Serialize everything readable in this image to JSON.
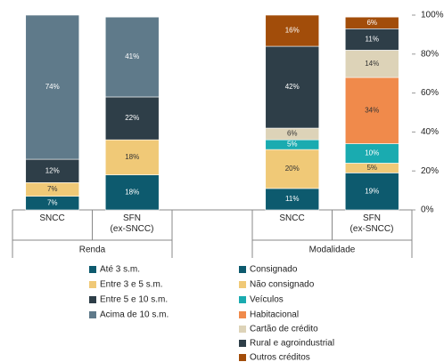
{
  "chart_data": {
    "type": "bar",
    "stacked": true,
    "ylim": [
      0,
      100
    ],
    "yticks": [
      {
        "value": 0,
        "label": "0%"
      },
      {
        "value": 20,
        "label": "20%"
      },
      {
        "value": 40,
        "label": "40%"
      },
      {
        "value": 60,
        "label": "60%"
      },
      {
        "value": 80,
        "label": "80%"
      },
      {
        "value": 100,
        "label": "100%"
      }
    ],
    "groups": [
      {
        "name": "Renda",
        "categories": [
          "SNCC",
          "SFN\n(ex-SNCC)"
        ],
        "series": [
          {
            "name": "Até 3 s.m.",
            "color": "#0d5a6e",
            "values": [
              7,
              18
            ],
            "value_labels": [
              "7%",
              "18%"
            ]
          },
          {
            "name": "Entre 3 e 5 s.m.",
            "color": "#f0c977",
            "values": [
              7,
              18
            ],
            "value_labels": [
              "7%",
              "18%"
            ]
          },
          {
            "name": "Entre 5 e 10 s.m.",
            "color": "#2e3e48",
            "values": [
              12,
              22
            ],
            "value_labels": [
              "12%",
              "22%"
            ]
          },
          {
            "name": "Acima de 10 s.m.",
            "color": "#5f7a8a",
            "values": [
              74,
              41
            ],
            "value_labels": [
              "74%",
              "41%"
            ]
          }
        ]
      },
      {
        "name": "Modalidade",
        "categories": [
          "SNCC",
          "SFN\n(ex-SNCC)"
        ],
        "series": [
          {
            "name": "Consignado",
            "color": "#0d5a6e",
            "values": [
              11,
              19
            ],
            "value_labels": [
              "11%",
              "19%"
            ]
          },
          {
            "name": "Não consignado",
            "color": "#f0c977",
            "values": [
              20,
              5
            ],
            "value_labels": [
              "20%",
              "5%"
            ]
          },
          {
            "name": "Veículos",
            "color": "#1aabb0",
            "values": [
              5,
              10
            ],
            "value_labels": [
              "5%",
              "10%"
            ]
          },
          {
            "name": "Habitacional",
            "color": "#f08a4b",
            "values": [
              null,
              34
            ],
            "value_labels": [
              null,
              "34%"
            ]
          },
          {
            "name": "Cartão de crédito",
            "color": "#ddd3b8",
            "values": [
              6,
              14
            ],
            "value_labels": [
              "6%",
              "14%"
            ]
          },
          {
            "name": "Rural e agroindustrial",
            "color": "#2e3e48",
            "values": [
              42,
              11
            ],
            "value_labels": [
              "42%",
              "11%"
            ]
          },
          {
            "name": "Outros créditos",
            "color": "#a24d0a",
            "values": [
              16,
              6
            ],
            "value_labels": [
              "16%",
              "6%"
            ]
          }
        ]
      }
    ]
  }
}
